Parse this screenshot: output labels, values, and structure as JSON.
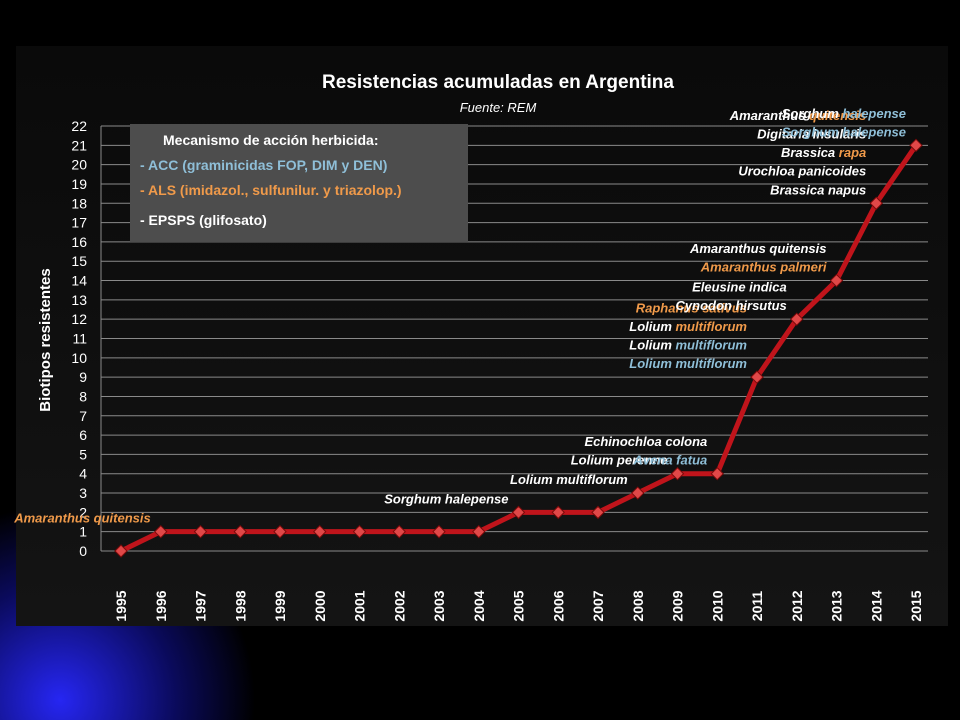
{
  "chart_data": {
    "type": "line",
    "title": "Resistencias acumuladas en Argentina",
    "subtitle": "Fuente: REM",
    "ylabel": "Biotipos resistentes",
    "xlabel": "",
    "ylim": [
      0,
      22
    ],
    "grid": true,
    "legend_placement": "top-left",
    "colors": {
      "line": "#c0141b",
      "marker": "#e04848",
      "ACC": "#8fbfd8",
      "ALS": "#f09a4a",
      "EPSPS": "#ffffff",
      "legend_box": "#4d4d4d"
    },
    "x": [
      "1995",
      "1996",
      "1997",
      "1998",
      "1999",
      "2000",
      "2001",
      "2002",
      "2003",
      "2004",
      "2005",
      "2006",
      "2007",
      "2008",
      "2009",
      "2010",
      "2011",
      "2012",
      "2013",
      "2014",
      "2015"
    ],
    "series": [
      {
        "values": [
          0,
          1,
          1,
          1,
          1,
          1,
          1,
          1,
          1,
          1,
          2,
          2,
          2,
          3,
          4,
          4,
          9,
          12,
          14,
          18,
          21
        ]
      }
    ],
    "legend": {
      "title": "Mecanismo de acción herbicida:",
      "items": [
        {
          "label": "- ACC (graminicidas FOP, DIM y DEN)",
          "color": "#8fbfd8"
        },
        {
          "label": "- ALS (imidazol., sulfunilur. y triazolop.)",
          "color": "#f09a4a"
        },
        {
          "label": "- EPSPS (glifosato)",
          "color": "#ffffff"
        }
      ]
    },
    "annotations": [
      {
        "parts": [
          {
            "t": "Amaranthus quitensis",
            "c": "ALS"
          }
        ],
        "year": "1996"
      },
      {
        "parts": [
          {
            "t": "Sorghum halepense",
            "c": "EPSPS"
          }
        ],
        "year": "2005"
      },
      {
        "parts": [
          {
            "t": "Lolium multiflorum",
            "c": "EPSPS"
          }
        ],
        "year": "2008"
      },
      {
        "parts": [
          {
            "t": "Lolium perenne",
            "c": "EPSPS"
          }
        ],
        "year": "2009"
      },
      {
        "parts": [
          {
            "t": "Avena fatua",
            "c": "ACC"
          }
        ],
        "year": "2010"
      },
      {
        "parts": [
          {
            "t": "Echinochloa colona",
            "c": "EPSPS"
          }
        ],
        "year": "2010"
      },
      {
        "parts": [
          {
            "t": "Lolium multiflorum",
            "c": "ACC"
          }
        ],
        "year": "2011"
      },
      {
        "parts": [
          {
            "t": "Lolium ",
            "c": "EPSPS"
          },
          {
            "t": "multiflorum",
            "c": "ACC"
          }
        ],
        "year": "2011"
      },
      {
        "parts": [
          {
            "t": "Lolium ",
            "c": "EPSPS"
          },
          {
            "t": "multiflorum",
            "c": "ALS"
          }
        ],
        "year": "2011"
      },
      {
        "parts": [
          {
            "t": "Raphanus sativus",
            "c": "ALS"
          }
        ],
        "year": "2011"
      },
      {
        "parts": [
          {
            "t": "Cynodon hirsutus",
            "c": "EPSPS"
          }
        ],
        "year": "2012"
      },
      {
        "parts": [
          {
            "t": "Eleusine indica",
            "c": "EPSPS"
          }
        ],
        "year": "2012"
      },
      {
        "parts": [
          {
            "t": "Amaranthus palmeri",
            "c": "ALS"
          }
        ],
        "year": "2013"
      },
      {
        "parts": [
          {
            "t": "Amaranthus quitensis",
            "c": "EPSPS"
          }
        ],
        "year": "2013"
      },
      {
        "parts": [
          {
            "t": "Brassica napus",
            "c": "EPSPS"
          }
        ],
        "year": "2014"
      },
      {
        "parts": [
          {
            "t": "Urochloa panicoides",
            "c": "EPSPS"
          }
        ],
        "year": "2014"
      },
      {
        "parts": [
          {
            "t": "Brassica ",
            "c": "EPSPS"
          },
          {
            "t": "rapa",
            "c": "ALS"
          }
        ],
        "year": "2014"
      },
      {
        "parts": [
          {
            "t": "Digitaria insularis",
            "c": "EPSPS"
          }
        ],
        "year": "2014"
      },
      {
        "parts": [
          {
            "t": "Amaranthus ",
            "c": "EPSPS"
          },
          {
            "t": "quitensis",
            "c": "ALS"
          }
        ],
        "year": "2014"
      },
      {
        "parts": [
          {
            "t": "Sorghum halepense",
            "c": "ACC"
          }
        ],
        "year": "2015"
      },
      {
        "parts": [
          {
            "t": "Sorghum ",
            "c": "EPSPS"
          },
          {
            "t": "halepense",
            "c": "ACC"
          }
        ],
        "year": "2015"
      }
    ]
  }
}
